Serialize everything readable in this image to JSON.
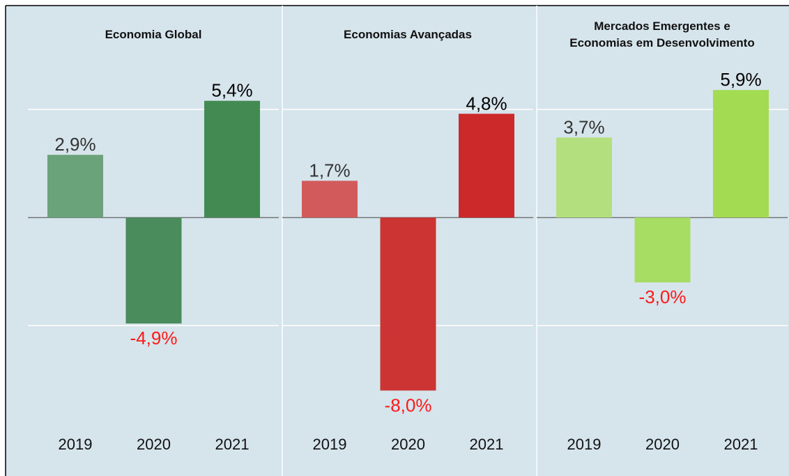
{
  "chart_data": [
    {
      "type": "bar",
      "title": "Economia Global",
      "categories": [
        "2019",
        "2020",
        "2021"
      ],
      "values": [
        2.9,
        -4.9,
        5.4
      ],
      "value_labels": [
        "2,9%",
        "-4,9%",
        "5,4%"
      ],
      "colors": [
        "#6aa27a",
        "#4b8c5c",
        "#428a52"
      ],
      "ylim": [
        -9.6,
        7
      ],
      "yticks": [
        -5,
        0,
        5
      ],
      "grid": true
    },
    {
      "type": "bar",
      "title": "Economias Avançadas",
      "categories": [
        "2019",
        "2020",
        "2021"
      ],
      "values": [
        1.7,
        -8.0,
        4.8
      ],
      "value_labels": [
        "1,7%",
        "-8,0%",
        "4,8%"
      ],
      "colors": [
        "#d35a5a",
        "#cc3434",
        "#cc2a2a"
      ],
      "ylim": [
        -9.6,
        7
      ],
      "yticks": [
        -5,
        0,
        5
      ],
      "grid": true
    },
    {
      "type": "bar",
      "title": "Mercados Emergentes e Economias em Desenvolvimento",
      "categories": [
        "2019",
        "2020",
        "2021"
      ],
      "values": [
        3.7,
        -3.0,
        5.9
      ],
      "value_labels": [
        "3,7%",
        "-3,0%",
        "5,9%"
      ],
      "colors": [
        "#b4df7f",
        "#a8dd63",
        "#a3db52"
      ],
      "ylim": [
        -9.6,
        7
      ],
      "yticks": [
        -5,
        0,
        5
      ],
      "grid": true
    }
  ]
}
